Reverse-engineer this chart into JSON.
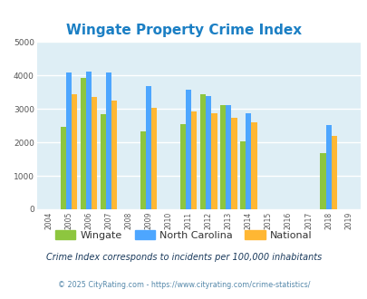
{
  "title": "Wingate Property Crime Index",
  "title_color": "#1b7fc4",
  "years": [
    2004,
    2005,
    2006,
    2007,
    2008,
    2009,
    2010,
    2011,
    2012,
    2013,
    2014,
    2015,
    2016,
    2017,
    2018,
    2019
  ],
  "wingate": [
    null,
    2460,
    3930,
    2830,
    null,
    2340,
    null,
    2540,
    3440,
    3110,
    2020,
    null,
    null,
    null,
    1680,
    null
  ],
  "north_carolina": [
    null,
    4080,
    4100,
    4080,
    null,
    3680,
    null,
    3560,
    3380,
    3120,
    2880,
    null,
    null,
    null,
    2510,
    null
  ],
  "national": [
    null,
    3430,
    3350,
    3250,
    null,
    3040,
    null,
    2930,
    2860,
    2730,
    2610,
    null,
    null,
    null,
    2190,
    null
  ],
  "bar_width": 0.28,
  "color_wingate": "#8dc63f",
  "color_nc": "#4da6ff",
  "color_national": "#ffb733",
  "ylim": [
    0,
    5000
  ],
  "yticks": [
    0,
    1000,
    2000,
    3000,
    4000,
    5000
  ],
  "bg_color": "#deeef5",
  "grid_color": "#ffffff",
  "legend_labels": [
    "Wingate",
    "North Carolina",
    "National"
  ],
  "legend_text_color": "#333333",
  "footnote1": "Crime Index corresponds to incidents per 100,000 inhabitants",
  "footnote2": "© 2025 CityRating.com - https://www.cityrating.com/crime-statistics/",
  "footnote_color1": "#1a3a5c",
  "footnote_color2": "#5588aa"
}
